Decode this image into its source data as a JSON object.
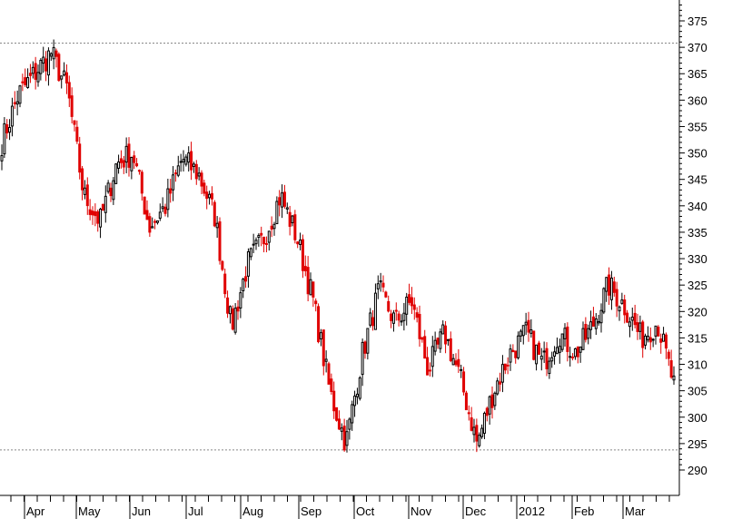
{
  "chart_data": {
    "type": "candlestick",
    "title": "",
    "xlabel": "",
    "ylabel": "",
    "ylim": [
      285,
      378
    ],
    "y_ticks": [
      290,
      295,
      300,
      305,
      310,
      315,
      320,
      325,
      330,
      335,
      340,
      345,
      350,
      355,
      360,
      365,
      370,
      375
    ],
    "x_tick_labels": [
      "Apr",
      "May",
      "Jun",
      "Jul",
      "Aug",
      "Sep",
      "Oct",
      "Nov",
      "Dec",
      "2012",
      "Feb",
      "Mar"
    ],
    "reference_lines": [
      {
        "value": 370.8,
        "style": "dotted"
      },
      {
        "value": 293.8,
        "style": "dotted"
      }
    ],
    "grid": false,
    "colors": {
      "up": "#000000",
      "down": "#e00000",
      "reference": "#888888"
    },
    "approx_close_path": [
      {
        "period": "Apr",
        "close": 352
      },
      {
        "period": "Apr",
        "close": 361
      },
      {
        "period": "Apr",
        "close": 365
      },
      {
        "period": "May",
        "close": 369
      },
      {
        "period": "May",
        "close": 362
      },
      {
        "period": "May",
        "close": 342
      },
      {
        "period": "May",
        "close": 337
      },
      {
        "period": "Jun",
        "close": 348
      },
      {
        "period": "Jun",
        "close": 350
      },
      {
        "period": "Jun",
        "close": 336
      },
      {
        "period": "Jul",
        "close": 340
      },
      {
        "period": "Jul",
        "close": 349
      },
      {
        "period": "Jul",
        "close": 346
      },
      {
        "period": "Aug",
        "close": 338
      },
      {
        "period": "Aug",
        "close": 317
      },
      {
        "period": "Aug",
        "close": 329
      },
      {
        "period": "Sep",
        "close": 334
      },
      {
        "period": "Sep",
        "close": 342
      },
      {
        "period": "Sep",
        "close": 334
      },
      {
        "period": "Sep",
        "close": 322
      },
      {
        "period": "Oct",
        "close": 305
      },
      {
        "period": "Oct",
        "close": 295
      },
      {
        "period": "Oct",
        "close": 312
      },
      {
        "period": "Nov",
        "close": 324
      },
      {
        "period": "Nov",
        "close": 318
      },
      {
        "period": "Nov",
        "close": 322
      },
      {
        "period": "Nov",
        "close": 309
      },
      {
        "period": "Dec",
        "close": 316
      },
      {
        "period": "Dec",
        "close": 307
      },
      {
        "period": "Dec",
        "close": 295
      },
      {
        "period": "Dec",
        "close": 305
      },
      {
        "period": "2012",
        "close": 312
      },
      {
        "period": "2012",
        "close": 316
      },
      {
        "period": "2012",
        "close": 310
      },
      {
        "period": "Feb",
        "close": 316
      },
      {
        "period": "Feb",
        "close": 312
      },
      {
        "period": "Feb",
        "close": 317
      },
      {
        "period": "Feb",
        "close": 325
      },
      {
        "period": "Mar",
        "close": 321
      },
      {
        "period": "Mar",
        "close": 315
      },
      {
        "period": "Mar",
        "close": 318
      },
      {
        "period": "Mar",
        "close": 306
      }
    ]
  }
}
